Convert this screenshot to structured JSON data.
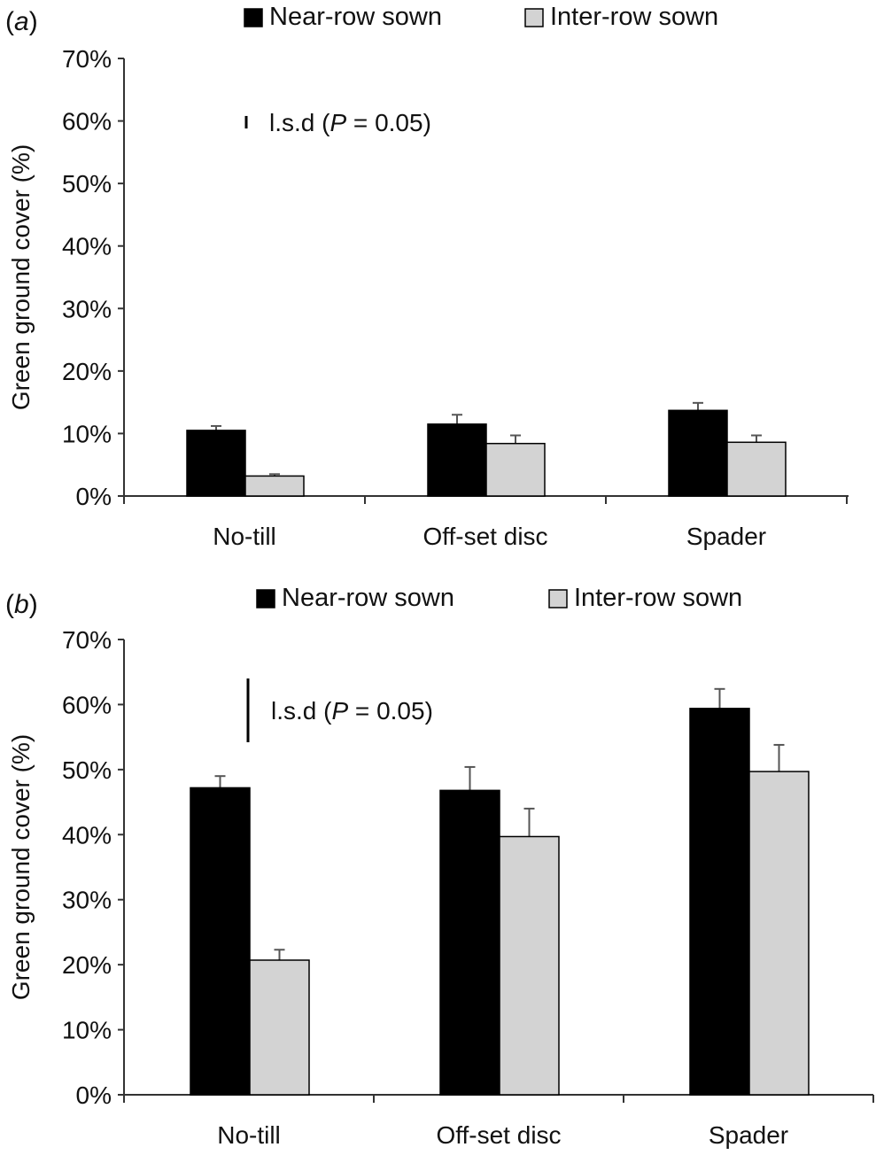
{
  "colors": {
    "near": "#000000",
    "inter": "#d3d3d3",
    "axis": "#333333",
    "text": "#111111"
  },
  "chart_data": [
    {
      "type": "bar",
      "panel": "(a)",
      "panel_letter": "a",
      "categories": [
        "No-till",
        "Off-set disc",
        "Spader"
      ],
      "series": [
        {
          "name": "Near-row sown",
          "values": [
            10.5,
            11.5,
            13.7
          ],
          "errors": [
            0.7,
            1.5,
            1.2
          ]
        },
        {
          "name": "Inter-row sown",
          "values": [
            3.2,
            8.4,
            8.6
          ],
          "errors": [
            0.3,
            1.3,
            1.1
          ]
        }
      ],
      "ylabel": "Green ground cover (%)",
      "ylim": [
        0,
        70
      ],
      "yticks": [
        "0%",
        "10%",
        "20%",
        "30%",
        "40%",
        "50%",
        "60%",
        "70%"
      ],
      "lsd": {
        "label_prefix": "l.s.d (",
        "label_p": "P",
        "label_suffix": " = 0.05)",
        "value": 2.0
      },
      "legend": "top"
    },
    {
      "type": "bar",
      "panel": "(b)",
      "panel_letter": "b",
      "categories": [
        "No-till",
        "Off-set disc",
        "Spader"
      ],
      "series": [
        {
          "name": "Near-row sown",
          "values": [
            47.2,
            46.8,
            59.4
          ],
          "errors": [
            1.8,
            3.6,
            3.0
          ]
        },
        {
          "name": "Inter-row sown",
          "values": [
            20.7,
            39.7,
            49.7
          ],
          "errors": [
            1.6,
            4.3,
            4.1
          ]
        }
      ],
      "ylabel": "Green ground cover (%)",
      "ylim": [
        0,
        70
      ],
      "yticks": [
        "0%",
        "10%",
        "20%",
        "30%",
        "40%",
        "50%",
        "60%",
        "70%"
      ],
      "lsd": {
        "label_prefix": "l.s.d (",
        "label_p": "P",
        "label_suffix": " = 0.05)",
        "value": 9.8
      },
      "legend": "top"
    }
  ]
}
